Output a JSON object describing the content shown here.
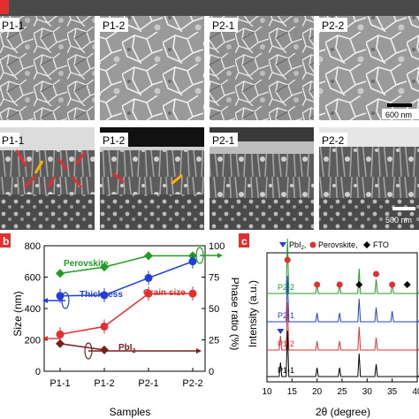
{
  "panel_a": {
    "top_labels": [
      "P1-1",
      "P1-2",
      "P2-1",
      "P2-2"
    ],
    "bottom_labels": [
      "P1-1",
      "P1-2",
      "P2-1",
      "P2-2"
    ],
    "top_scale": "600 nm",
    "bottom_scale": "500 nm"
  },
  "panel_b": {
    "badge": "b",
    "xlabel": "Samples",
    "ylabel_left": "Size (nm)",
    "ylabel_right": "Phase ratio (%)",
    "left_ticks": [
      "0",
      "200",
      "400",
      "600",
      "800"
    ],
    "right_ticks": [
      "0",
      "25",
      "50",
      "75",
      "100"
    ],
    "categories": [
      "P1-1",
      "P1-2",
      "P2-1",
      "P2-2"
    ],
    "annotations": {
      "perovskite": "Perovskite",
      "thickness": "Thickness",
      "grain_size": "Grain size",
      "pbi2_main": "PbI",
      "pbi2_sub": "2"
    },
    "colors": {
      "perovskite": "#1f9d1f",
      "thickness": "#1f3fd6",
      "grain_size": "#e03030",
      "pbi2": "#7a1e1e"
    }
  },
  "panel_c": {
    "badge": "c",
    "xlabel": "2θ (degree)",
    "ylabel": "Intensity (a.u.)",
    "x_ticks": [
      "10",
      "15",
      "20",
      "25",
      "30",
      "35",
      "40"
    ],
    "legend": [
      "PbI",
      "2",
      ",",
      "Perovskite,",
      "FTO"
    ],
    "trace_labels": [
      "P2-2",
      "P2-1",
      "P1-2",
      "P1-1"
    ],
    "colors": {
      "P2-2": "#1f9d1f",
      "P2-1": "#1f3fd6",
      "P1-2": "#e03030",
      "P1-1": "#000000"
    }
  },
  "chart_data": [
    {
      "type": "line",
      "categories": [
        "P1-1",
        "P1-2",
        "P2-1",
        "P2-2"
      ],
      "xlabel": "Samples",
      "ylabel": "Size (nm)",
      "y2label": "Phase ratio (%)",
      "ylim": [
        0,
        800
      ],
      "y2lim": [
        0,
        100
      ],
      "series": [
        {
          "name": "Perovskite",
          "axis": "right",
          "values": [
            78,
            83,
            92,
            92
          ]
        },
        {
          "name": "Thickness",
          "axis": "left",
          "values": [
            480,
            485,
            595,
            700
          ]
        },
        {
          "name": "Grain size",
          "axis": "left",
          "values": [
            235,
            285,
            495,
            495
          ]
        },
        {
          "name": "PbI2",
          "axis": "right",
          "values": [
            22,
            17,
            null,
            null
          ]
        }
      ]
    },
    {
      "type": "line",
      "xlabel": "2θ (degree)",
      "ylabel": "Intensity (a.u.)",
      "xlim": [
        10,
        40
      ],
      "series": [
        {
          "name": "P2-2",
          "peaks_x": [
            14.1,
            20.0,
            24.5,
            28.4,
            31.8,
            35.0,
            40.6
          ]
        },
        {
          "name": "P2-1",
          "peaks_x": [
            14.1,
            20.0,
            24.5,
            28.4,
            31.8,
            35.0,
            40.6
          ]
        },
        {
          "name": "P1-2",
          "peaks_x": [
            12.7,
            14.1,
            20.0,
            24.5,
            28.4,
            31.8,
            40.6
          ]
        },
        {
          "name": "P1-1",
          "peaks_x": [
            12.7,
            14.1,
            20.0,
            24.5,
            28.4,
            31.8,
            40.6
          ]
        }
      ]
    }
  ]
}
